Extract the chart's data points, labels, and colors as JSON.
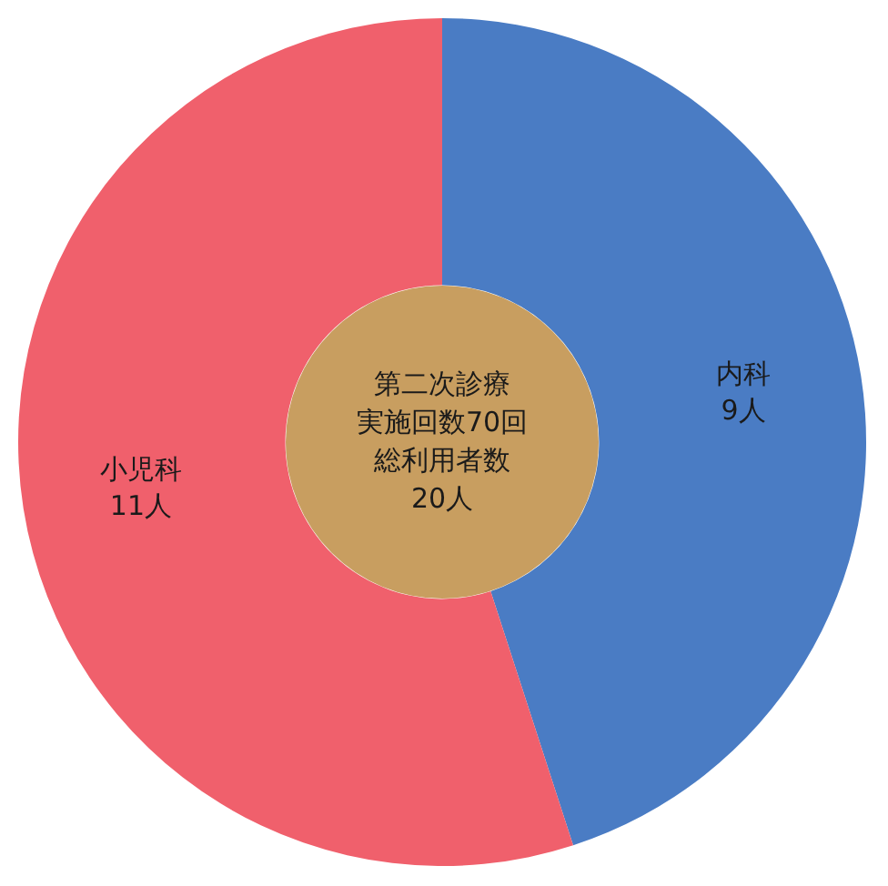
{
  "chart_data": {
    "type": "donut",
    "categories": [
      "内科",
      "小児科"
    ],
    "values": [
      9,
      11
    ],
    "colors": [
      "#4a7cc4",
      "#f0606c"
    ],
    "value_labels": [
      "9人",
      "11人"
    ],
    "annotations": [
      "第二次診療",
      "実施回数70回",
      "総利用者数",
      "20人"
    ],
    "legend": false
  }
}
